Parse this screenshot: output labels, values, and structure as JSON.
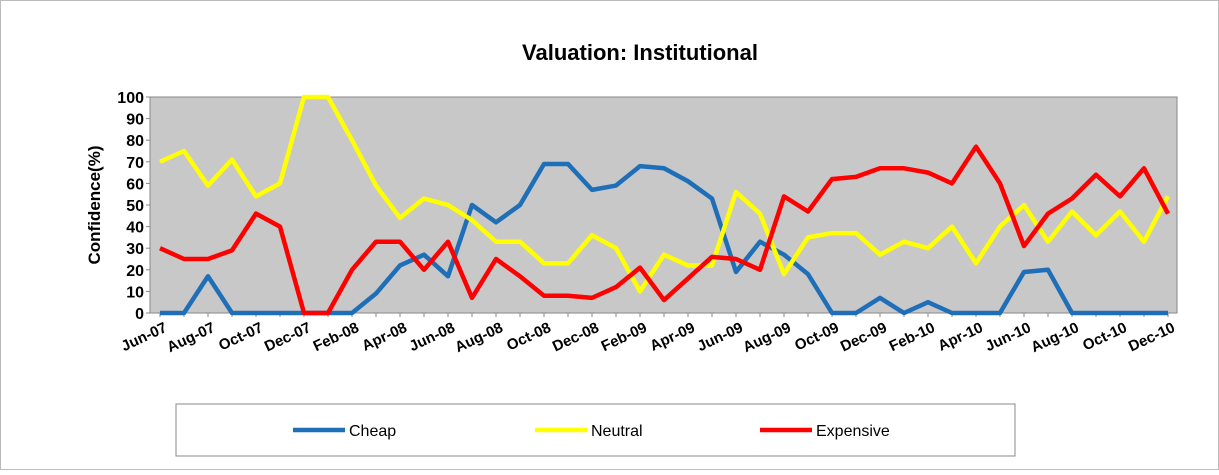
{
  "chart_data": {
    "type": "line",
    "title": "Valuation: Institutional",
    "y_label": "Confidence(%)",
    "categories": [
      "Jun-07",
      null,
      "Aug-07",
      null,
      "Oct-07",
      null,
      "Dec-07",
      null,
      "Feb-08",
      null,
      "Apr-08",
      null,
      "Jun-08",
      null,
      "Aug-08",
      null,
      "Oct-08",
      null,
      "Dec-08",
      null,
      "Feb-09",
      null,
      "Apr-09",
      null,
      "Jun-09",
      null,
      "Aug-09",
      null,
      "Oct-09",
      null,
      "Dec-09",
      null,
      "Feb-10",
      null,
      "Apr-10",
      null,
      "Jun-10",
      null,
      "Aug-10",
      null,
      "Oct-10",
      null,
      "Dec-10"
    ],
    "series": [
      {
        "name": "Cheap",
        "color": "#1f6fb8",
        "values": [
          0,
          0,
          17,
          0,
          0,
          0,
          0,
          0,
          0,
          9,
          22,
          27,
          17,
          50,
          42,
          50,
          69,
          69,
          57,
          59,
          68,
          67,
          61,
          53,
          19,
          33,
          27,
          18,
          0,
          0,
          7,
          0,
          5,
          0,
          0,
          0,
          19,
          20,
          0,
          0,
          0,
          0,
          0
        ]
      },
      {
        "name": "Neutral",
        "color": "#ffff00",
        "values": [
          70,
          75,
          59,
          71,
          54,
          60,
          100,
          100,
          80,
          59,
          44,
          53,
          50,
          43,
          33,
          33,
          23,
          23,
          36,
          30,
          10,
          27,
          22,
          22,
          56,
          46,
          18,
          35,
          37,
          37,
          27,
          33,
          30,
          40,
          23,
          40,
          50,
          33,
          47,
          36,
          47,
          33,
          54
        ]
      },
      {
        "name": "Expensive",
        "color": "#ff0000",
        "values": [
          30,
          25,
          25,
          29,
          46,
          40,
          0,
          0,
          20,
          33,
          33,
          20,
          33,
          7,
          25,
          17,
          8,
          8,
          7,
          12,
          21,
          6,
          16,
          26,
          25,
          20,
          54,
          47,
          62,
          63,
          67,
          67,
          65,
          60,
          77,
          60,
          31,
          46,
          53,
          64,
          54,
          67,
          46
        ]
      }
    ],
    "ylim": [
      0,
      100
    ],
    "yticks": [
      0,
      10,
      20,
      30,
      40,
      50,
      60,
      70,
      80,
      90,
      100
    ],
    "grid": false,
    "legend": "bottom"
  }
}
